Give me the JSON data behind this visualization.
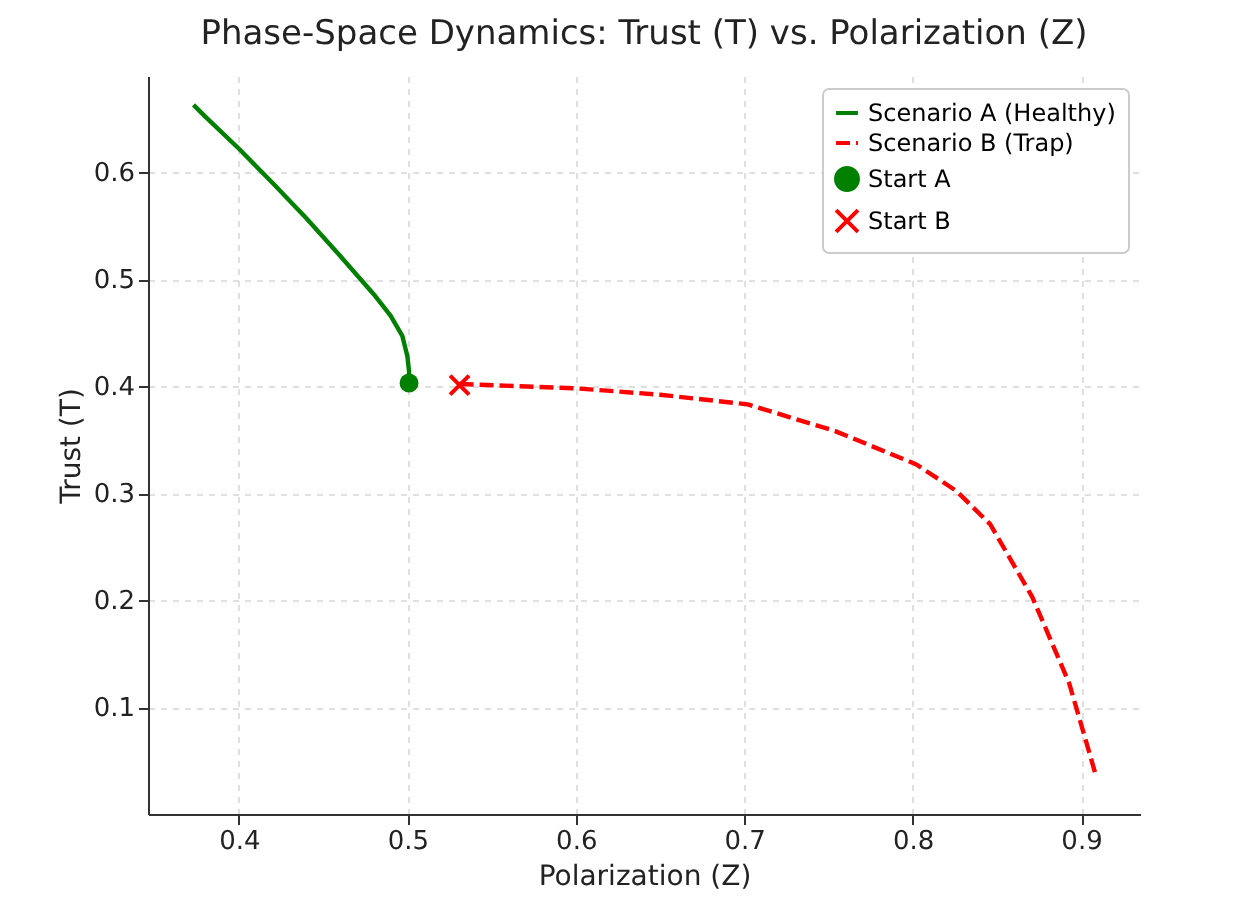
{
  "chart_data": {
    "type": "line",
    "title": "Phase-Space Dynamics: Trust (T) vs. Polarization (Z)",
    "xlabel": "Polarization (Z)",
    "ylabel": "Trust (T)",
    "xlim": [
      0.346,
      0.935
    ],
    "ylim": [
      0,
      0.69
    ],
    "xticks": [
      0.4,
      0.5,
      0.6,
      0.7,
      0.8,
      0.9
    ],
    "yticks": [
      0.1,
      0.2,
      0.3,
      0.4,
      0.5,
      0.6
    ],
    "grid": true,
    "legend": "top right",
    "series": [
      {
        "name": "Scenario A (Healthy)",
        "color": "#008000",
        "line_style": "solid",
        "x": [
          0.373,
          0.38,
          0.4,
          0.42,
          0.44,
          0.46,
          0.48,
          0.49,
          0.497,
          0.5,
          0.501,
          0.501
        ],
        "values": [
          0.663,
          0.652,
          0.622,
          0.59,
          0.557,
          0.522,
          0.486,
          0.466,
          0.447,
          0.428,
          0.414,
          0.403
        ]
      },
      {
        "name": "Scenario B (Trap)",
        "color": "#ff0000",
        "line_style": "dashed",
        "x": [
          0.531,
          0.6,
          0.65,
          0.702,
          0.754,
          0.802,
          0.826,
          0.846,
          0.871,
          0.893,
          0.909
        ],
        "values": [
          0.402,
          0.398,
          0.392,
          0.383,
          0.358,
          0.327,
          0.302,
          0.271,
          0.203,
          0.122,
          0.035
        ]
      },
      {
        "name": "Start A",
        "type": "scatter",
        "color": "#008000",
        "marker": "circle",
        "x": [
          0.501
        ],
        "values": [
          0.403
        ]
      },
      {
        "name": "Start B",
        "type": "scatter",
        "color": "#ff0000",
        "marker": "cross",
        "x": [
          0.531
        ],
        "values": [
          0.401
        ]
      }
    ]
  }
}
